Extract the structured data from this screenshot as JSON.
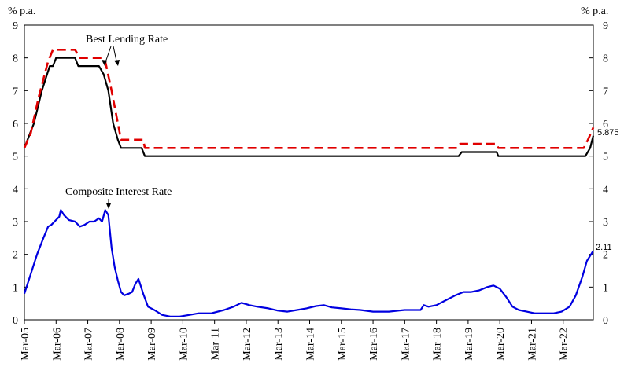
{
  "chart_data": {
    "type": "line",
    "title": "",
    "xlabel": "",
    "ylabel": "% p.a.",
    "ylabel_right": "% p.a.",
    "ylim": [
      0,
      9
    ],
    "yticks": [
      "0",
      "1",
      "2",
      "3",
      "4",
      "5",
      "6",
      "7",
      "8",
      "9"
    ],
    "x_start_year": 2005,
    "x_end": 2022.95,
    "categories": [
      "Mar-05",
      "Mar-06",
      "Mar-07",
      "Mar-08",
      "Mar-09",
      "Mar-10",
      "Mar-11",
      "Mar-12",
      "Mar-13",
      "Mar-14",
      "Mar-15",
      "Mar-16",
      "Mar-17",
      "Mar-18",
      "Mar-19",
      "Mar-20",
      "Mar-21",
      "Mar-22"
    ],
    "grid": false,
    "annotations": [
      {
        "text": "Best Lending Rate"
      },
      {
        "text": "Composite Interest Rate"
      }
    ],
    "end_labels": [
      {
        "text": "5.875"
      },
      {
        "text": "2.11"
      }
    ],
    "series": [
      {
        "color": "#000000",
        "style": "solid",
        "points": [
          [
            2005.0,
            5.25
          ],
          [
            2005.1,
            5.5
          ],
          [
            2005.3,
            6.0
          ],
          [
            2005.55,
            7.0
          ],
          [
            2005.8,
            7.75
          ],
          [
            2005.9,
            7.75
          ],
          [
            2006.0,
            8.0
          ],
          [
            2006.6,
            8.0
          ],
          [
            2006.7,
            7.75
          ],
          [
            2007.35,
            7.75
          ],
          [
            2007.5,
            7.5
          ],
          [
            2007.65,
            7.0
          ],
          [
            2007.8,
            6.0
          ],
          [
            2007.95,
            5.5
          ],
          [
            2008.05,
            5.25
          ],
          [
            2008.7,
            5.25
          ],
          [
            2008.8,
            5.0
          ],
          [
            2018.7,
            5.0
          ],
          [
            2018.8,
            5.125
          ],
          [
            2019.9,
            5.125
          ],
          [
            2019.95,
            5.0
          ],
          [
            2022.7,
            5.0
          ],
          [
            2022.85,
            5.25
          ],
          [
            2022.95,
            5.625
          ]
        ]
      },
      {
        "color": "#e00000",
        "style": "dashed",
        "points": [
          [
            2005.0,
            5.25
          ],
          [
            2005.2,
            5.7
          ],
          [
            2005.45,
            6.8
          ],
          [
            2005.75,
            7.9
          ],
          [
            2005.9,
            8.25
          ],
          [
            2006.6,
            8.25
          ],
          [
            2006.75,
            8.0
          ],
          [
            2007.45,
            8.0
          ],
          [
            2007.55,
            7.9
          ],
          [
            2007.75,
            7.0
          ],
          [
            2007.95,
            6.0
          ],
          [
            2008.05,
            5.5
          ],
          [
            2008.75,
            5.5
          ],
          [
            2008.8,
            5.25
          ],
          [
            2018.65,
            5.25
          ],
          [
            2018.75,
            5.375
          ],
          [
            2019.9,
            5.375
          ],
          [
            2019.95,
            5.25
          ],
          [
            2022.65,
            5.25
          ],
          [
            2022.78,
            5.5
          ],
          [
            2022.95,
            5.875
          ]
        ]
      },
      {
        "color": "#0000e0",
        "style": "solid",
        "points": [
          [
            2005.0,
            0.8
          ],
          [
            2005.2,
            1.4
          ],
          [
            2005.4,
            2.0
          ],
          [
            2005.6,
            2.5
          ],
          [
            2005.75,
            2.85
          ],
          [
            2005.85,
            2.9
          ],
          [
            2006.0,
            3.05
          ],
          [
            2006.1,
            3.15
          ],
          [
            2006.15,
            3.35
          ],
          [
            2006.25,
            3.2
          ],
          [
            2006.4,
            3.05
          ],
          [
            2006.6,
            3.0
          ],
          [
            2006.75,
            2.85
          ],
          [
            2006.9,
            2.9
          ],
          [
            2007.05,
            3.0
          ],
          [
            2007.2,
            3.0
          ],
          [
            2007.35,
            3.1
          ],
          [
            2007.45,
            3.0
          ],
          [
            2007.55,
            3.35
          ],
          [
            2007.65,
            3.2
          ],
          [
            2007.75,
            2.2
          ],
          [
            2007.85,
            1.6
          ],
          [
            2007.95,
            1.2
          ],
          [
            2008.05,
            0.85
          ],
          [
            2008.15,
            0.75
          ],
          [
            2008.3,
            0.8
          ],
          [
            2008.4,
            0.85
          ],
          [
            2008.5,
            1.1
          ],
          [
            2008.6,
            1.25
          ],
          [
            2008.75,
            0.8
          ],
          [
            2008.9,
            0.4
          ],
          [
            2009.1,
            0.3
          ],
          [
            2009.35,
            0.15
          ],
          [
            2009.6,
            0.1
          ],
          [
            2009.9,
            0.1
          ],
          [
            2010.2,
            0.15
          ],
          [
            2010.5,
            0.2
          ],
          [
            2010.9,
            0.2
          ],
          [
            2011.3,
            0.3
          ],
          [
            2011.6,
            0.4
          ],
          [
            2011.85,
            0.52
          ],
          [
            2012.1,
            0.45
          ],
          [
            2012.35,
            0.4
          ],
          [
            2012.7,
            0.35
          ],
          [
            2013.0,
            0.28
          ],
          [
            2013.3,
            0.25
          ],
          [
            2013.6,
            0.3
          ],
          [
            2013.9,
            0.35
          ],
          [
            2014.2,
            0.42
          ],
          [
            2014.45,
            0.45
          ],
          [
            2014.7,
            0.38
          ],
          [
            2015.0,
            0.35
          ],
          [
            2015.3,
            0.32
          ],
          [
            2015.6,
            0.3
          ],
          [
            2016.0,
            0.25
          ],
          [
            2016.5,
            0.25
          ],
          [
            2017.0,
            0.3
          ],
          [
            2017.5,
            0.3
          ],
          [
            2017.6,
            0.45
          ],
          [
            2017.75,
            0.4
          ],
          [
            2018.0,
            0.45
          ],
          [
            2018.3,
            0.6
          ],
          [
            2018.6,
            0.75
          ],
          [
            2018.85,
            0.85
          ],
          [
            2019.1,
            0.85
          ],
          [
            2019.35,
            0.9
          ],
          [
            2019.6,
            1.0
          ],
          [
            2019.8,
            1.05
          ],
          [
            2020.0,
            0.95
          ],
          [
            2020.2,
            0.7
          ],
          [
            2020.4,
            0.4
          ],
          [
            2020.6,
            0.3
          ],
          [
            2020.85,
            0.25
          ],
          [
            2021.1,
            0.2
          ],
          [
            2021.4,
            0.2
          ],
          [
            2021.7,
            0.2
          ],
          [
            2021.95,
            0.25
          ],
          [
            2022.2,
            0.4
          ],
          [
            2022.4,
            0.75
          ],
          [
            2022.6,
            1.3
          ],
          [
            2022.75,
            1.8
          ],
          [
            2022.95,
            2.11
          ]
        ]
      }
    ]
  }
}
